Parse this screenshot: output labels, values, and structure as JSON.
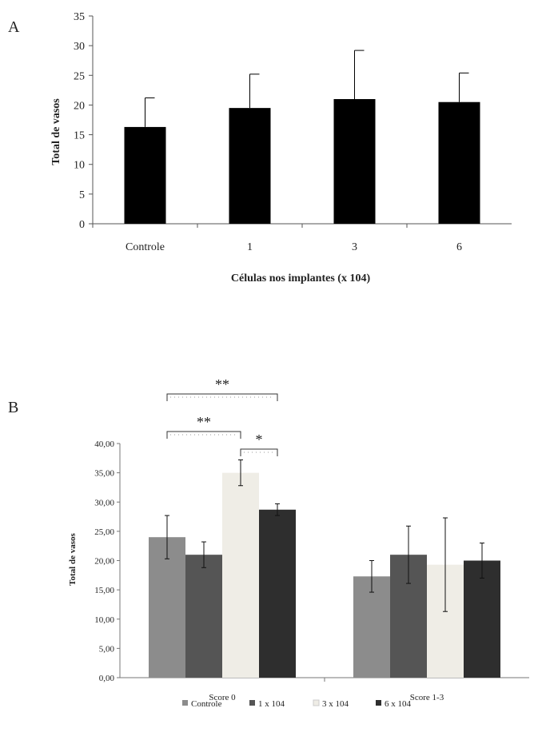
{
  "panels": {
    "a_label": "A",
    "b_label": "B"
  },
  "chart_data": [
    {
      "type": "bar",
      "categories": [
        "Controle",
        "1",
        "3",
        "6"
      ],
      "values": [
        16.3,
        19.5,
        21.0,
        20.5
      ],
      "errors": [
        4.9,
        5.7,
        8.2,
        4.9
      ],
      "xlabel": "Células nos implantes (x 104)",
      "ylabel": "Total de vasos",
      "ylim": [
        0,
        35
      ],
      "yticks": [
        "0",
        "5",
        "10",
        "15",
        "20",
        "25",
        "30",
        "35"
      ],
      "ytick_values": [
        0,
        5,
        10,
        15,
        20,
        25,
        30,
        35
      ],
      "bar_color": "#000000",
      "grid": false
    },
    {
      "type": "bar",
      "categories": [
        "Score 0",
        "Score 1-3"
      ],
      "series": [
        {
          "name": "Controle",
          "color": "#8c8c8c",
          "values": [
            24.0,
            17.3
          ],
          "errors": [
            3.7,
            2.7
          ]
        },
        {
          "name": "1 x 104",
          "color": "#555555",
          "values": [
            21.0,
            21.0
          ],
          "errors": [
            2.2,
            4.9
          ]
        },
        {
          "name": "3 x 104",
          "color": "#efede6",
          "values": [
            35.0,
            19.3
          ],
          "errors": [
            2.2,
            8.0
          ]
        },
        {
          "name": "6 x 104",
          "color": "#2e2e2e",
          "values": [
            28.7,
            20.0
          ],
          "errors": [
            1.0,
            3.0
          ]
        }
      ],
      "ylabel": "Total de vasos",
      "ylim": [
        0,
        40
      ],
      "yticks": [
        "0,00",
        "5,00",
        "10,00",
        "15,00",
        "20,00",
        "25,00",
        "30,00",
        "35,00",
        "40,00"
      ],
      "ytick_values": [
        0,
        5,
        10,
        15,
        20,
        25,
        30,
        35,
        40
      ],
      "legend_position": "bottom",
      "grid": false,
      "annotations": [
        {
          "text": "**",
          "group": "Score 0",
          "from_series": 0,
          "to_series": 3
        },
        {
          "text": "**",
          "group": "Score 0",
          "from_series": 0,
          "to_series": 2
        },
        {
          "text": "*",
          "group": "Score 0",
          "from_series": 2,
          "to_series": 3
        }
      ]
    }
  ]
}
